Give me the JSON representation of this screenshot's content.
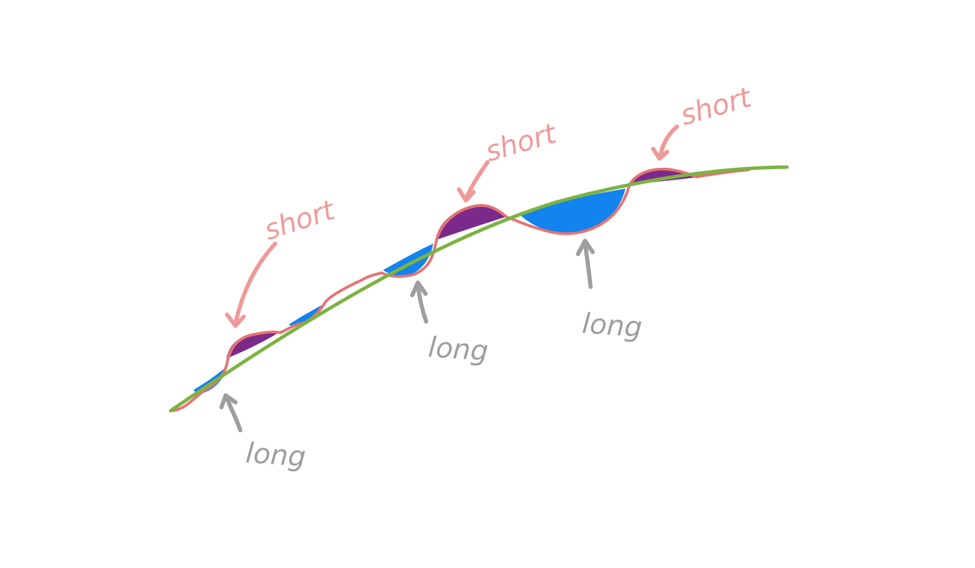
{
  "annotations": {
    "short": [
      {
        "label": "short"
      },
      {
        "label": "short"
      },
      {
        "label": "short"
      }
    ],
    "long": [
      {
        "label": "long"
      },
      {
        "label": "long"
      },
      {
        "label": "long"
      }
    ]
  },
  "colors": {
    "trend_line": "#7cb342",
    "price_line": "#e57373",
    "short_fill": "#7b2a8c",
    "long_fill": "#1283ef",
    "short_label": "#ef9a9a",
    "long_label": "#9e9e9e"
  }
}
